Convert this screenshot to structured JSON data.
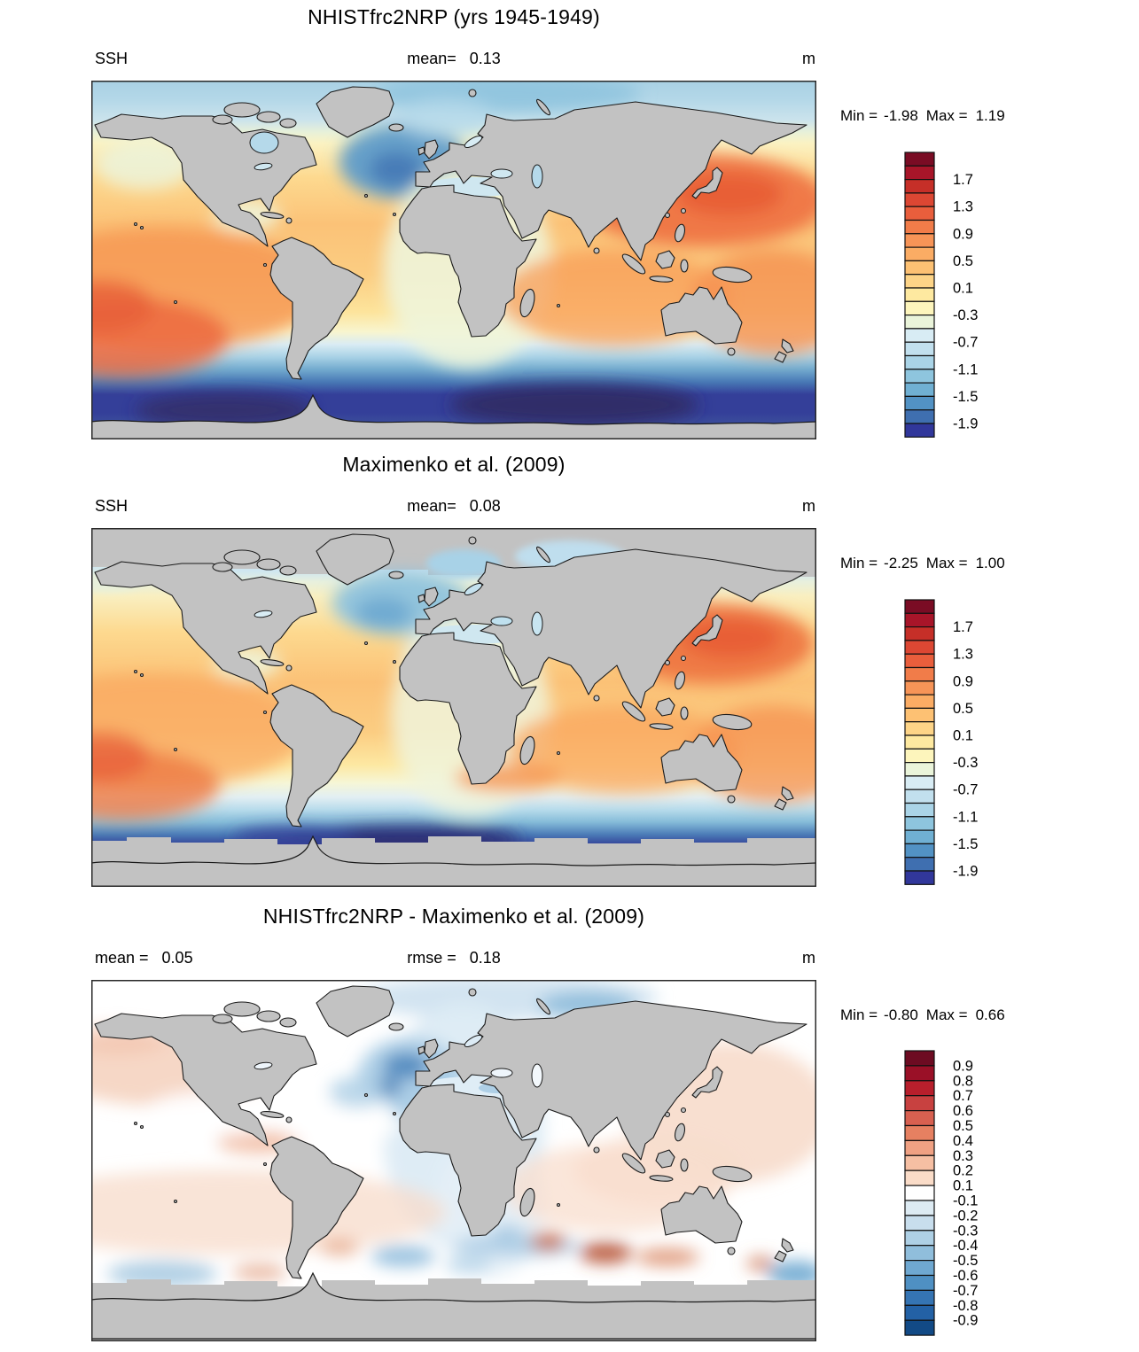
{
  "panels": [
    {
      "id": "model",
      "title": "NHISTfrc2NRP (yrs 1945-1949)",
      "left_label": "SSH",
      "stats": [
        {
          "label": "mean=",
          "value": "0.13"
        }
      ],
      "unit": "m",
      "min_label": "Min =",
      "min_value": "-1.98",
      "max_label": "Max =",
      "max_value": "1.19",
      "palette": "ssh",
      "colorbar_ticks": [
        "1.7",
        "1.3",
        "0.9",
        "0.5",
        "0.1",
        "-0.3",
        "-0.7",
        "-1.1",
        "-1.5",
        "-1.9"
      ]
    },
    {
      "id": "obs",
      "title": "Maximenko et al. (2009)",
      "left_label": "SSH",
      "stats": [
        {
          "label": "mean=",
          "value": "0.08"
        }
      ],
      "unit": "m",
      "min_label": "Min =",
      "min_value": "-2.25",
      "max_label": "Max =",
      "max_value": "1.00",
      "palette": "ssh",
      "colorbar_ticks": [
        "1.7",
        "1.3",
        "0.9",
        "0.5",
        "0.1",
        "-0.3",
        "-0.7",
        "-1.1",
        "-1.5",
        "-1.9"
      ]
    },
    {
      "id": "diff",
      "title": "NHISTfrc2NRP - Maximenko et al. (2009)",
      "left_label": "",
      "stats": [
        {
          "label": "mean =",
          "value": "0.05"
        },
        {
          "label": "rmse =",
          "value": "0.18"
        }
      ],
      "unit": "m",
      "min_label": "Min =",
      "min_value": "-0.80",
      "max_label": "Max =",
      "max_value": "0.66",
      "palette": "diff",
      "colorbar_ticks": [
        "0.9",
        "0.8",
        "0.7",
        "0.6",
        "0.5",
        "0.4",
        "0.3",
        "0.2",
        "0.1",
        "-0.1",
        "-0.2",
        "-0.3",
        "-0.4",
        "-0.5",
        "-0.6",
        "-0.7",
        "-0.8",
        "-0.9"
      ]
    }
  ],
  "palettes": {
    "ssh": [
      "#7a0c24",
      "#a81529",
      "#c62f28",
      "#dc4733",
      "#e95e3c",
      "#f17c49",
      "#f79457",
      "#fbac64",
      "#fdc173",
      "#fdd487",
      "#fee9a0",
      "#fdf5bc",
      "#eaf4da",
      "#d8ecf4",
      "#c2e0ee",
      "#aad4e7",
      "#8ec5de",
      "#70b0d3",
      "#5292c4",
      "#3f6fb0",
      "#31379b"
    ],
    "diff": [
      "#6d0b22",
      "#9a1027",
      "#b81f2c",
      "#c84140",
      "#d86050",
      "#e68061",
      "#f0a183",
      "#f6bfa3",
      "#fadcc8",
      "#ffffff",
      "#ddebf3",
      "#c8deed",
      "#aed0e5",
      "#90bedc",
      "#6fa8d1",
      "#4f90c3",
      "#3574b3",
      "#2361a5",
      "#124a86"
    ],
    "land_color": "#c2c2c2",
    "coast_color": "#1b1b1b"
  },
  "chart_data": [
    {
      "type": "heatmap",
      "title": "NHISTfrc2NRP (yrs 1945-1949)",
      "variable": "SSH",
      "units": "m",
      "mean": 0.13,
      "min": -1.98,
      "max": 1.19,
      "projection": "global longitude-latitude map (equirectangular), Pacific at edges, Atlantic centered",
      "contour_interval": 0.2,
      "levels": [
        -1.9,
        -1.7,
        -1.5,
        -1.3,
        -1.1,
        -0.9,
        -0.7,
        -0.5,
        -0.3,
        -0.1,
        0.1,
        0.3,
        0.5,
        0.7,
        0.9,
        1.1,
        1.3,
        1.5,
        1.7,
        1.9
      ],
      "legend_position": "right vertical colorbar, 21 classes, red(high) to blue(low)",
      "notes": "High SSH ~0.7-1.1 m over subtropical gyres, strongest northwest Pacific near Kuroshio; pale yellow ~0 in equatorial Atlantic; blue subpolar North Atlantic ~-0.7; light blue Arctic ~-0.4; SSH drops below -1.9 m in Antarctic Circumpolar Current band; land gray"
    },
    {
      "type": "heatmap",
      "title": "Maximenko et al. (2009)",
      "variable": "SSH",
      "units": "m",
      "mean": 0.08,
      "min": -2.25,
      "max": 1.0,
      "projection": "global longitude-latitude map (equirectangular), Pacific at edges, Atlantic centered",
      "contour_interval": 0.2,
      "levels": [
        -1.9,
        -1.7,
        -1.5,
        -1.3,
        -1.1,
        -0.9,
        -0.7,
        -0.5,
        -0.3,
        -0.1,
        0.1,
        0.3,
        0.5,
        0.7,
        0.9,
        1.1,
        1.3,
        1.5,
        1.7,
        1.9
      ],
      "legend_position": "right vertical colorbar, 21 classes, red(high) to blue(low)",
      "notes": "Observed mean dynamic topography; similar gyre pattern with orange maximum east of Japan; Arctic and region poleward of ~60S shown gray (no data); deep blue Southern Ocean minimum south of Atlantic"
    },
    {
      "type": "heatmap",
      "title": "NHISTfrc2NRP - Maximenko et al. (2009)",
      "variable": "SSH difference (model minus observations)",
      "units": "m",
      "mean": 0.05,
      "rmse": 0.18,
      "min": -0.8,
      "max": 0.66,
      "projection": "global longitude-latitude map (equirectangular), Pacific at edges, Atlantic centered",
      "contour_interval": 0.1,
      "levels": [
        -0.9,
        -0.8,
        -0.7,
        -0.6,
        -0.5,
        -0.4,
        -0.3,
        -0.2,
        -0.1,
        0.1,
        0.2,
        0.3,
        0.4,
        0.5,
        0.6,
        0.7,
        0.8,
        0.9
      ],
      "legend_position": "right vertical colorbar, 19 classes, red(positive) white(zero) blue(negative)",
      "notes": "Mostly near zero (white/pale pink +0.1..0.3); negative (blue, to -0.5) over North Atlantic subpolar gyre and Gulf Stream, Barents Sea and tropical Atlantic; scattered red patches +0.4..0.7 near 50S in the Indian sector; gray no-data band south of ~60S"
    }
  ]
}
